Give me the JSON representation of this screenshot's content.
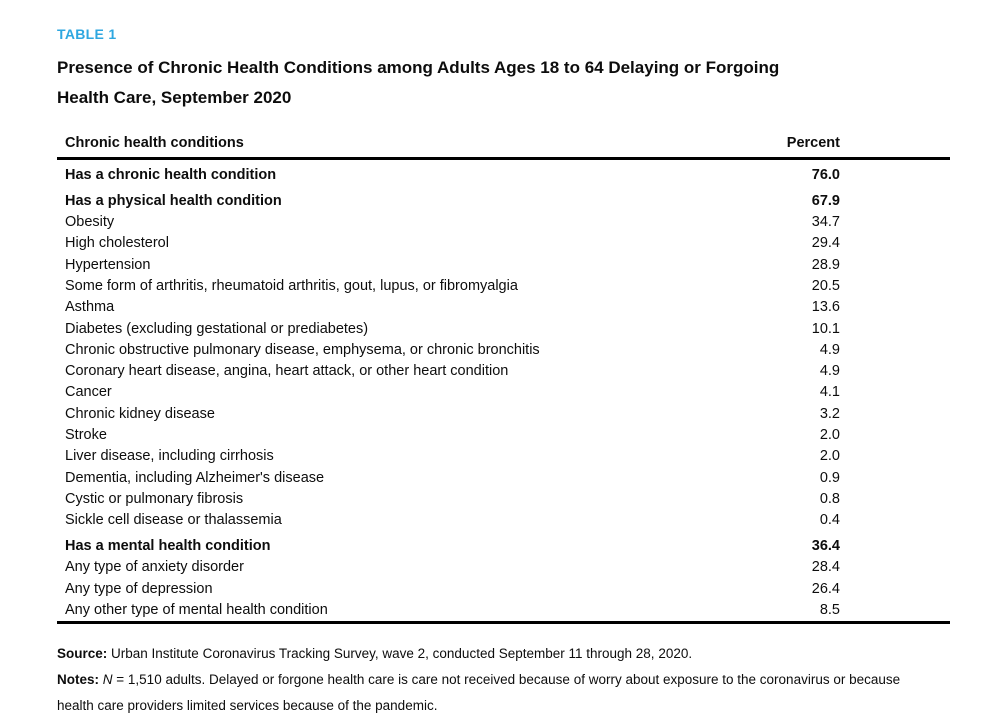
{
  "header": {
    "eyebrow": "TABLE 1",
    "title_line1": "Presence of Chronic Health Conditions among Adults Ages 18 to 64 Delaying or Forgoing",
    "title_line2": "Health Care, September 2020",
    "accent_color": "#2ea7e0"
  },
  "table": {
    "columns": [
      "Chronic health conditions",
      "Percent"
    ],
    "rows": [
      {
        "label": "Has a chronic health condition",
        "value": "76.0",
        "bold": true
      },
      {
        "label": "Has a physical health condition",
        "value": "67.9",
        "bold": true
      },
      {
        "label": "Obesity",
        "value": "34.7",
        "bold": false
      },
      {
        "label": "High cholesterol",
        "value": "29.4",
        "bold": false
      },
      {
        "label": "Hypertension",
        "value": "28.9",
        "bold": false
      },
      {
        "label": "Some form of arthritis, rheumatoid arthritis, gout, lupus, or fibromyalgia",
        "value": "20.5",
        "bold": false
      },
      {
        "label": "Asthma",
        "value": "13.6",
        "bold": false
      },
      {
        "label": "Diabetes (excluding gestational or prediabetes)",
        "value": "10.1",
        "bold": false
      },
      {
        "label": "Chronic obstructive pulmonary disease, emphysema, or chronic bronchitis",
        "value": "4.9",
        "bold": false
      },
      {
        "label": "Coronary heart disease, angina, heart attack, or other heart condition",
        "value": "4.9",
        "bold": false
      },
      {
        "label": "Cancer",
        "value": "4.1",
        "bold": false
      },
      {
        "label": "Chronic kidney disease",
        "value": "3.2",
        "bold": false
      },
      {
        "label": "Stroke",
        "value": "2.0",
        "bold": false
      },
      {
        "label": "Liver disease, including cirrhosis",
        "value": "2.0",
        "bold": false
      },
      {
        "label": "Dementia, including Alzheimer's disease",
        "value": "0.9",
        "bold": false
      },
      {
        "label": "Cystic or pulmonary fibrosis",
        "value": "0.8",
        "bold": false
      },
      {
        "label": "Sickle cell disease or thalassemia",
        "value": "0.4",
        "bold": false
      },
      {
        "label": "Has a mental health condition",
        "value": "36.4",
        "bold": true
      },
      {
        "label": "Any type of anxiety disorder",
        "value": "28.4",
        "bold": false
      },
      {
        "label": "Any type of depression",
        "value": "26.4",
        "bold": false
      },
      {
        "label": "Any other type of mental health condition",
        "value": "8.5",
        "bold": false
      }
    ]
  },
  "footer": {
    "source_label": "Source:",
    "source_text": " Urban Institute Coronavirus Tracking Survey, wave 2, conducted September 11 through 28, 2020.",
    "notes_label": "Notes:",
    "notes_n": "N",
    "notes_text": " = 1,510 adults. Delayed or forgone health care is care not received because of worry about exposure to the coronavirus or because health care providers limited services because of the pandemic."
  }
}
